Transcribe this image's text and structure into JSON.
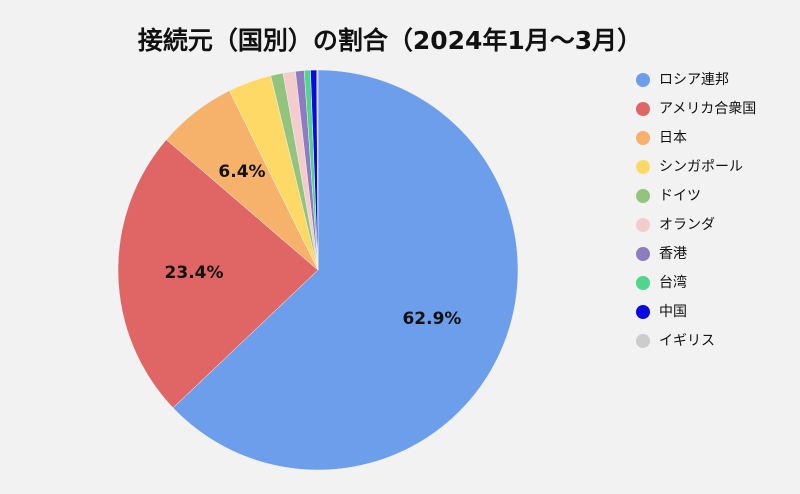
{
  "chart_data": {
    "type": "pie",
    "title": "接続元（国別）の割合（2024年1月～3月）",
    "categories": [
      "ロシア連邦",
      "アメリカ合衆国",
      "日本",
      "シンガポール",
      "ドイツ",
      "オランダ",
      "香港",
      "台湾",
      "中国",
      "イギリス"
    ],
    "values": [
      62.9,
      23.4,
      6.4,
      3.5,
      1.0,
      1.0,
      0.7,
      0.5,
      0.5,
      0.1
    ],
    "value_labels": [
      "62.9%",
      "23.4%",
      "6.4%",
      null,
      null,
      null,
      null,
      null,
      null,
      null
    ],
    "colors": [
      "#6d9eeb",
      "#e06666",
      "#f6b26b",
      "#ffd966",
      "#93c47d",
      "#f4cccc",
      "#8e7cc3",
      "#4fd68a",
      "#0a0ae0",
      "#cccccc"
    ],
    "legend": "right"
  }
}
